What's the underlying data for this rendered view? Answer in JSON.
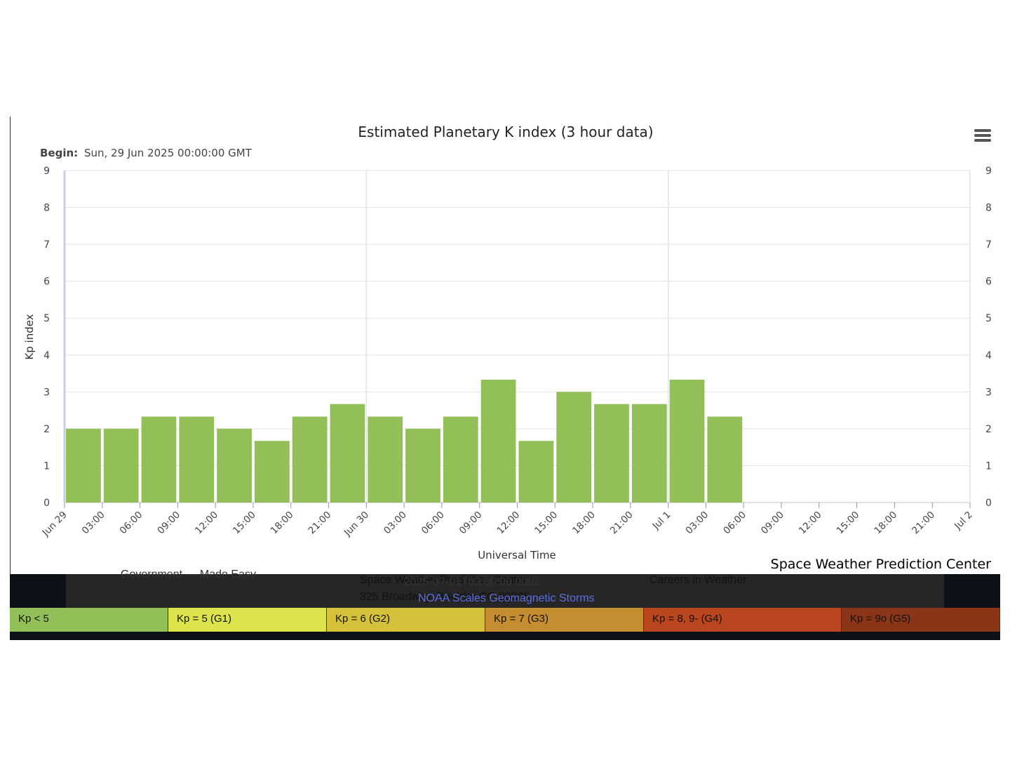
{
  "chart_data": {
    "type": "bar",
    "title": "Estimated Planetary K index (3 hour data)",
    "subtitle_label": "Begin:",
    "subtitle_value": "Sun, 29 Jun 2025 00:00:00 GMT",
    "xlabel": "Universal Time",
    "ylabel": "Kp index",
    "ylim": [
      0,
      9
    ],
    "yticks": [
      "0",
      "1",
      "2",
      "3",
      "4",
      "5",
      "6",
      "7",
      "8",
      "9"
    ],
    "xticks": [
      "Jun 29",
      "03:00",
      "06:00",
      "09:00",
      "12:00",
      "15:00",
      "18:00",
      "21:00",
      "Jun 30",
      "03:00",
      "06:00",
      "09:00",
      "12:00",
      "15:00",
      "18:00",
      "21:00",
      "Jul 1",
      "03:00",
      "06:00",
      "09:00",
      "12:00",
      "15:00",
      "18:00",
      "21:00",
      "Jul 2"
    ],
    "values": [
      2.0,
      2.0,
      2.33,
      2.33,
      2.0,
      1.67,
      2.33,
      2.67,
      2.33,
      2.0,
      2.33,
      3.33,
      1.67,
      3.0,
      2.67,
      2.67,
      3.33,
      2.33
    ],
    "bar_color": "#93bf58",
    "grid": true
  },
  "credit": "Space Weather Prediction Center",
  "footer": {
    "left_text": "Government — Made Easy",
    "address_line1": "Space Weather Prediction Center",
    "address_line2": "325 Broadway, Boulder CO 80305",
    "timestamp": "2025-07-01T03:00:00.000Z",
    "careers": "Careers in Weather",
    "scales_title": "NOAA Scales Geomagnetic Storms"
  },
  "scale_legend": [
    {
      "label": "Kp < 5",
      "color": "#93bf58"
    },
    {
      "label": "Kp = 5 (G1)",
      "color": "#dce34b"
    },
    {
      "label": "Kp = 6 (G2)",
      "color": "#d6c13b"
    },
    {
      "label": "Kp = 7 (G3)",
      "color": "#c48e30"
    },
    {
      "label": "Kp = 8, 9- (G4)",
      "color": "#b9461e"
    },
    {
      "label": "Kp = 9o (G5)",
      "color": "#8a3517"
    }
  ]
}
